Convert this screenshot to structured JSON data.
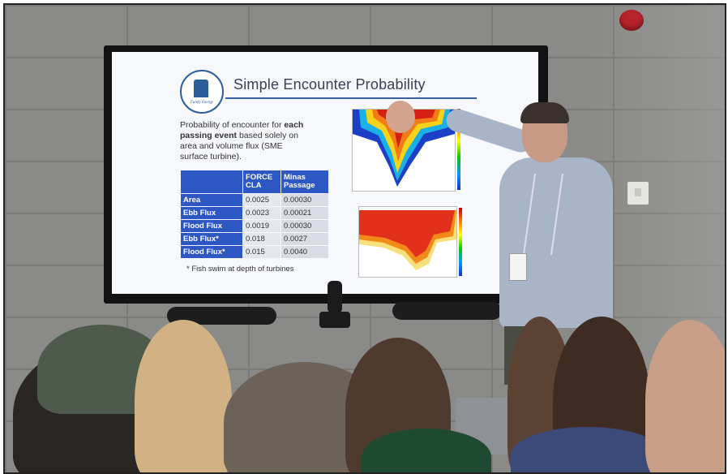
{
  "slide": {
    "title": "Simple Encounter Probability",
    "logo_text": "Fundy Energy",
    "description_pre": "Probability of encounter for ",
    "description_bold": "each passing event",
    "description_post": " based solely on area and volume flux (SME surface turbine).",
    "table": {
      "headers": [
        "",
        "FORCE CLA",
        "Minas Passage"
      ],
      "rows": [
        {
          "label": "Area",
          "force": "0.0025",
          "minas": "0.00030"
        },
        {
          "label": "Ebb Flux",
          "force": "0.0023",
          "minas": "0.00021"
        },
        {
          "label": "Flood Flux",
          "force": "0.0019",
          "minas": "0.00030"
        },
        {
          "label": "Ebb Flux*",
          "force": "0.018",
          "minas": "0.0027"
        },
        {
          "label": "Flood Flux*",
          "force": "0.015",
          "minas": "0.0040"
        }
      ]
    },
    "footnote": "* Fish swim at depth of turbines"
  },
  "colors": {
    "table_header": "#2d58c4",
    "title_rule": "#3a5f9b",
    "alarm": "#b8232b",
    "wall": "#8a8a88"
  }
}
